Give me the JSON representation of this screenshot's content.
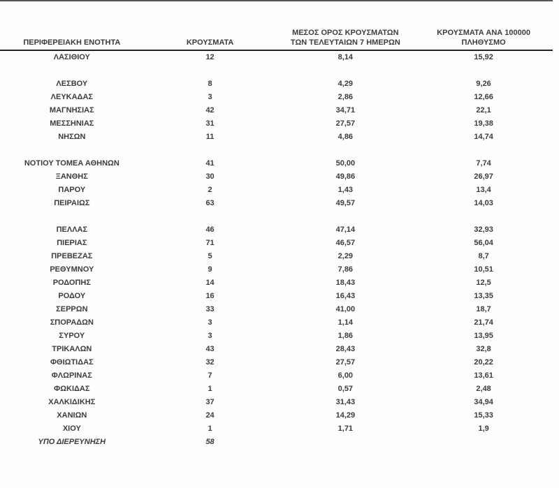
{
  "header": {
    "col1": {
      "line1": "",
      "line2": "ΠΕΡΙΦΕΡΕΙΑΚΗ ΕΝΟΤΗΤΑ"
    },
    "col2": {
      "line1": "",
      "line2": "ΚΡΟΥΣΜΑΤΑ"
    },
    "col3": {
      "line1": "ΜΕΣΟΣ ΟΡΟΣ ΚΡΟΥΣΜΑΤΩΝ",
      "line2": "ΤΩΝ ΤΕΛΕΥΤΑΙΩΝ 7 ΗΜΕΡΩΝ"
    },
    "col4": {
      "line1": "ΚΡΟΥΣΜΑΤΑ ΑΝΑ 100000",
      "line2": "ΠΛΗΘΥΣΜΟ"
    }
  },
  "colors": {
    "text": "#3b3c3e",
    "top_rule": "#55565a",
    "header_rule": "#212124",
    "background": "#fdfdfd"
  },
  "table": {
    "rows": [
      {
        "region": "ΛΑΣΙΘΙΟΥ",
        "cases": "12",
        "avg7": "8,14",
        "per100k": "15,92"
      },
      {
        "blank": true
      },
      {
        "region": "ΛΕΣΒΟΥ",
        "cases": "8",
        "avg7": "4,29",
        "per100k": "9,26"
      },
      {
        "region": "ΛΕΥΚΑΔΑΣ",
        "cases": "3",
        "avg7": "2,86",
        "per100k": "12,66"
      },
      {
        "region": "ΜΑΓΝΗΣΙΑΣ",
        "cases": "42",
        "avg7": "34,71",
        "per100k": "22,1"
      },
      {
        "region": "ΜΕΣΣΗΝΙΑΣ",
        "cases": "31",
        "avg7": "27,57",
        "per100k": "19,38"
      },
      {
        "region": "ΝΗΣΩΝ",
        "cases": "11",
        "avg7": "4,86",
        "per100k": "14,74"
      },
      {
        "blank": true
      },
      {
        "region": "ΝΟΤΙΟΥ ΤΟΜΕΑ ΑΘΗΝΩΝ",
        "cases": "41",
        "avg7": "50,00",
        "per100k": "7,74"
      },
      {
        "region": "ΞΑΝΘΗΣ",
        "cases": "30",
        "avg7": "49,86",
        "per100k": "26,97"
      },
      {
        "region": "ΠΑΡΟΥ",
        "cases": "2",
        "avg7": "1,43",
        "per100k": "13,4"
      },
      {
        "region": "ΠΕΙΡΑΙΩΣ",
        "cases": "63",
        "avg7": "49,57",
        "per100k": "14,03"
      },
      {
        "blank": true
      },
      {
        "region": "ΠΕΛΛΑΣ",
        "cases": "46",
        "avg7": "47,14",
        "per100k": "32,93"
      },
      {
        "region": "ΠΙΕΡΙΑΣ",
        "cases": "71",
        "avg7": "46,57",
        "per100k": "56,04"
      },
      {
        "region": "ΠΡΕΒΕΖΑΣ",
        "cases": "5",
        "avg7": "2,29",
        "per100k": "8,7"
      },
      {
        "region": "ΡΕΘΥΜΝΟΥ",
        "cases": "9",
        "avg7": "7,86",
        "per100k": "10,51"
      },
      {
        "region": "ΡΟΔΟΠΗΣ",
        "cases": "14",
        "avg7": "18,43",
        "per100k": "12,5"
      },
      {
        "region": "ΡΟΔΟΥ",
        "cases": "16",
        "avg7": "16,43",
        "per100k": "13,35"
      },
      {
        "region": "ΣΕΡΡΩΝ",
        "cases": "33",
        "avg7": "41,00",
        "per100k": "18,7"
      },
      {
        "region": "ΣΠΟΡΑΔΩΝ",
        "cases": "3",
        "avg7": "1,14",
        "per100k": "21,74"
      },
      {
        "region": "ΣΥΡΟΥ",
        "cases": "3",
        "avg7": "1,86",
        "per100k": "13,95"
      },
      {
        "region": "ΤΡΙΚΑΛΩΝ",
        "cases": "43",
        "avg7": "28,43",
        "per100k": "32,8"
      },
      {
        "region": "ΦΘΙΩΤΙΔΑΣ",
        "cases": "32",
        "avg7": "27,57",
        "per100k": "20,22"
      },
      {
        "region": "ΦΛΩΡΙΝΑΣ",
        "cases": "7",
        "avg7": "6,00",
        "per100k": "13,61"
      },
      {
        "region": "ΦΩΚΙΔΑΣ",
        "cases": "1",
        "avg7": "0,57",
        "per100k": "2,48"
      },
      {
        "region": "ΧΑΛΚΙΔΙΚΗΣ",
        "cases": "37",
        "avg7": "31,43",
        "per100k": "34,94"
      },
      {
        "region": "ΧΑΝΙΩΝ",
        "cases": "24",
        "avg7": "14,29",
        "per100k": "15,33"
      },
      {
        "region": "ΧΙΟΥ",
        "cases": "1",
        "avg7": "1,71",
        "per100k": "1,9"
      },
      {
        "region": "ΥΠΟ ΔΙΕΡΕΥΝΗΣΗ",
        "cases": "58",
        "avg7": "",
        "per100k": "",
        "italic": true
      }
    ]
  }
}
